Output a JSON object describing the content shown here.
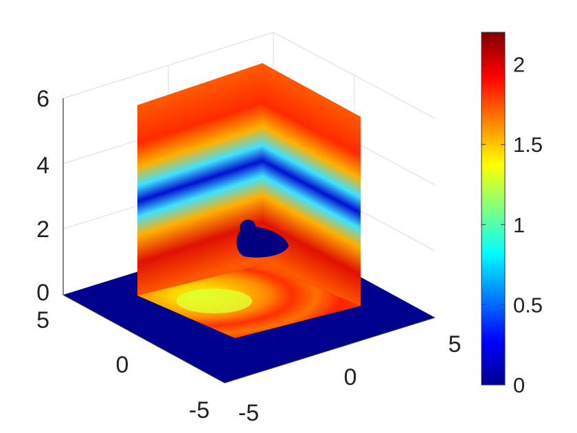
{
  "chart_data": {
    "type": "heatmap",
    "title": "",
    "xlabel": "",
    "ylabel": "",
    "zlabel": "",
    "x_ticks": [
      "-5",
      "0",
      "5"
    ],
    "y_ticks": [
      "-5",
      "0",
      "5"
    ],
    "z_ticks": [
      "0",
      "2",
      "4",
      "6"
    ],
    "xlim": [
      -5,
      5
    ],
    "ylim": [
      -5,
      5
    ],
    "zlim": [
      0,
      6
    ],
    "colormap": "jet",
    "colorbar": {
      "range": [
        0,
        2.2
      ],
      "ticks": [
        "0",
        "0.5",
        "1",
        "1.5",
        "2"
      ],
      "tick_values": [
        0,
        0.5,
        1,
        1.5,
        2
      ],
      "placement": "right"
    },
    "slices": [
      {
        "plane": "z = 0",
        "extent": "x, y in [-5, 5]",
        "value_outside_center": 0
      },
      {
        "plane": "x = 0 (vertical)",
        "z_range": [
          0,
          6
        ]
      },
      {
        "plane": "y = 0 (vertical)",
        "z_range": [
          0,
          6
        ]
      }
    ],
    "grid": true,
    "box": false
  }
}
